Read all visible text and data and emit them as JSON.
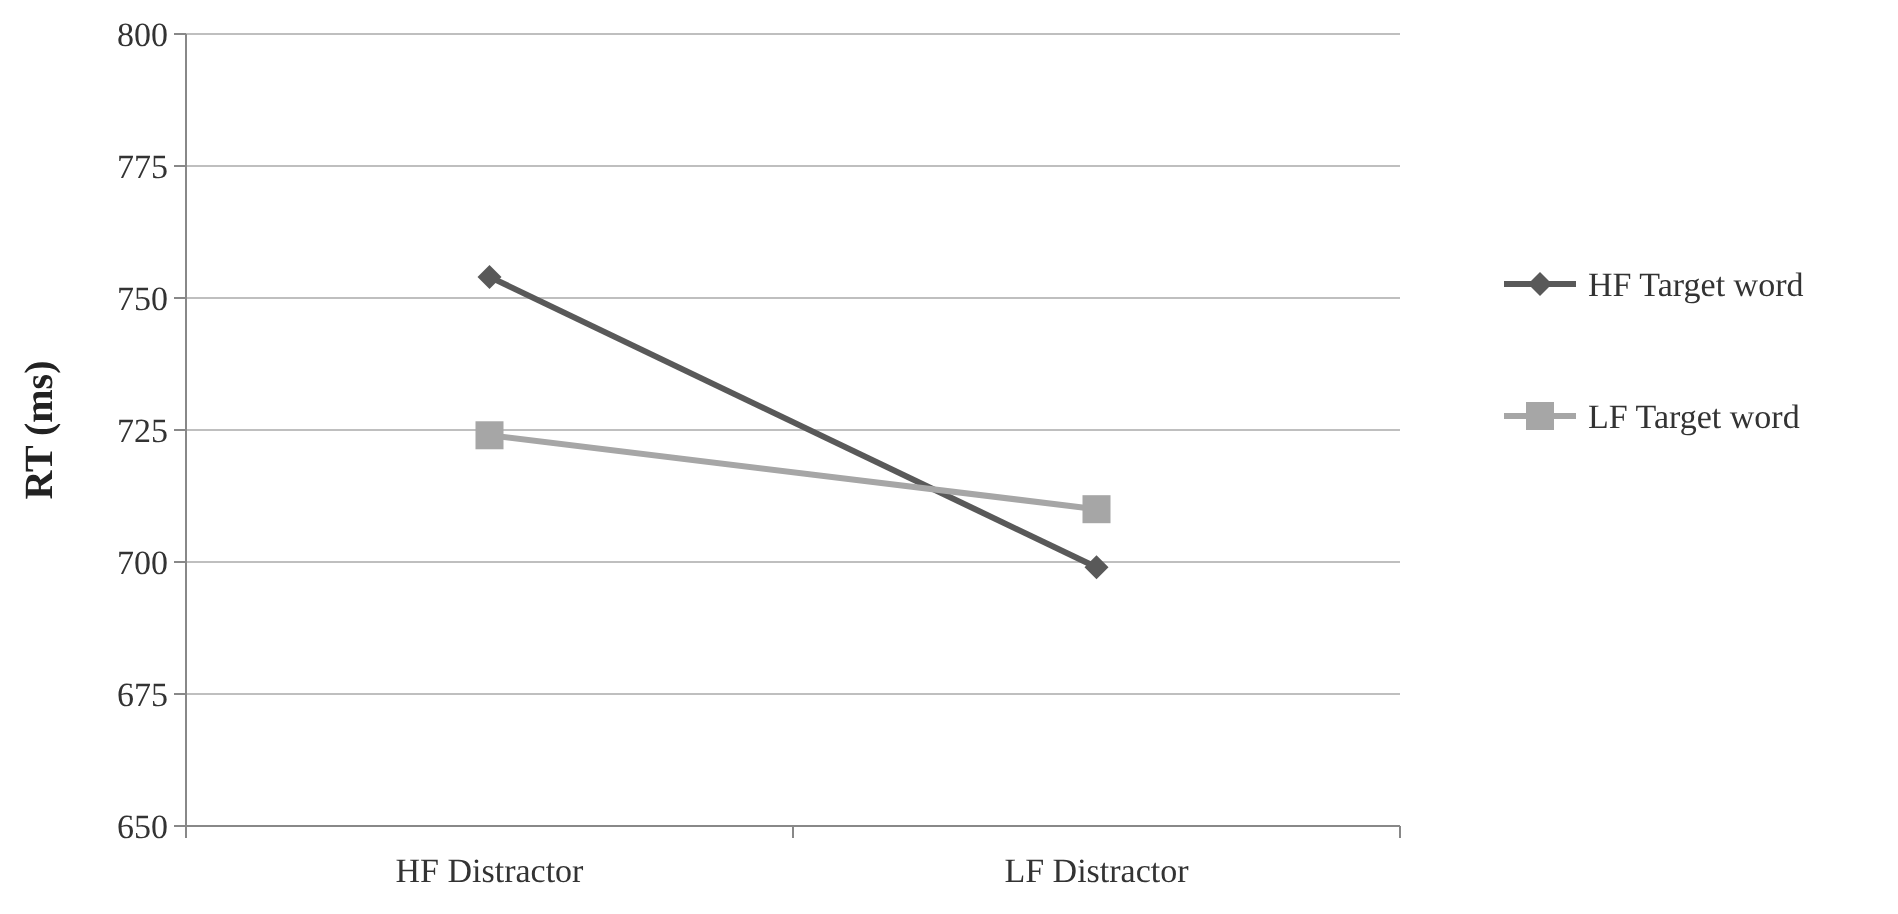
{
  "chart_data": {
    "type": "line",
    "ylabel": "RT (ms)",
    "categories": [
      "HF Distractor",
      "LF Distractor"
    ],
    "series": [
      {
        "name": "HF Target word",
        "color": "#595959",
        "marker": "diamond",
        "values": [
          754,
          699
        ]
      },
      {
        "name": "LF Target word",
        "color": "#a6a6a6",
        "marker": "square",
        "values": [
          724,
          710
        ]
      }
    ],
    "ylim": [
      650,
      800
    ],
    "yticks": [
      650,
      675,
      700,
      725,
      750,
      775,
      800
    ],
    "grid": "y",
    "legend": "right"
  }
}
